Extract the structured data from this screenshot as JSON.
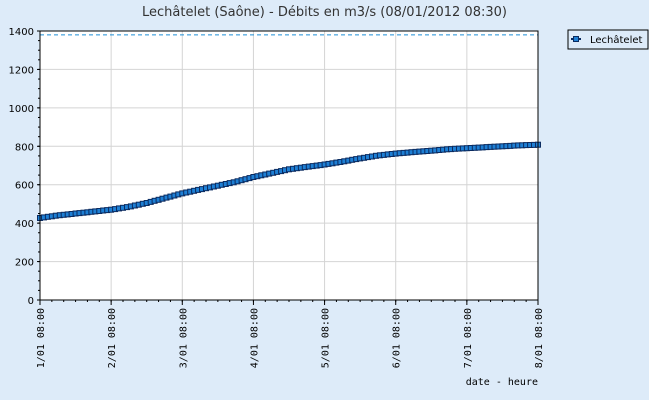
{
  "chart_data": {
    "type": "line",
    "title": "Lechâtelet (Saône) - Débits en m3/s (08/01/2012 08:30)",
    "xlabel": "date - heure",
    "ylabel": "",
    "ylim": [
      0,
      1400
    ],
    "yticks": [
      0,
      200,
      400,
      600,
      800,
      1000,
      1200,
      1400
    ],
    "x_tick_labels": [
      "1/01 08:00",
      "2/01 08:00",
      "3/01 08:00",
      "4/01 08:00",
      "5/01 08:00",
      "6/01 08:00",
      "7/01 08:00",
      "8/01 08:00"
    ],
    "grid": true,
    "legend_position": "top-right",
    "reference_line": {
      "value": 1380,
      "style": "dashed",
      "color": "#1e8fd6"
    },
    "series": [
      {
        "name": "Lechâtelet",
        "color": "#1e7fd4",
        "x": [
          0,
          0.25,
          0.5,
          0.75,
          1,
          1.25,
          1.5,
          1.75,
          2,
          2.25,
          2.5,
          2.75,
          3,
          3.25,
          3.5,
          3.75,
          4,
          4.25,
          4.5,
          4.75,
          5,
          5.25,
          5.5,
          5.75,
          6,
          6.25,
          6.5,
          6.75,
          7
        ],
        "values": [
          427,
          440,
          450,
          460,
          470,
          485,
          505,
          530,
          555,
          575,
          595,
          615,
          640,
          660,
          680,
          693,
          705,
          720,
          737,
          752,
          762,
          770,
          777,
          785,
          790,
          795,
          800,
          805,
          808
        ]
      }
    ]
  }
}
